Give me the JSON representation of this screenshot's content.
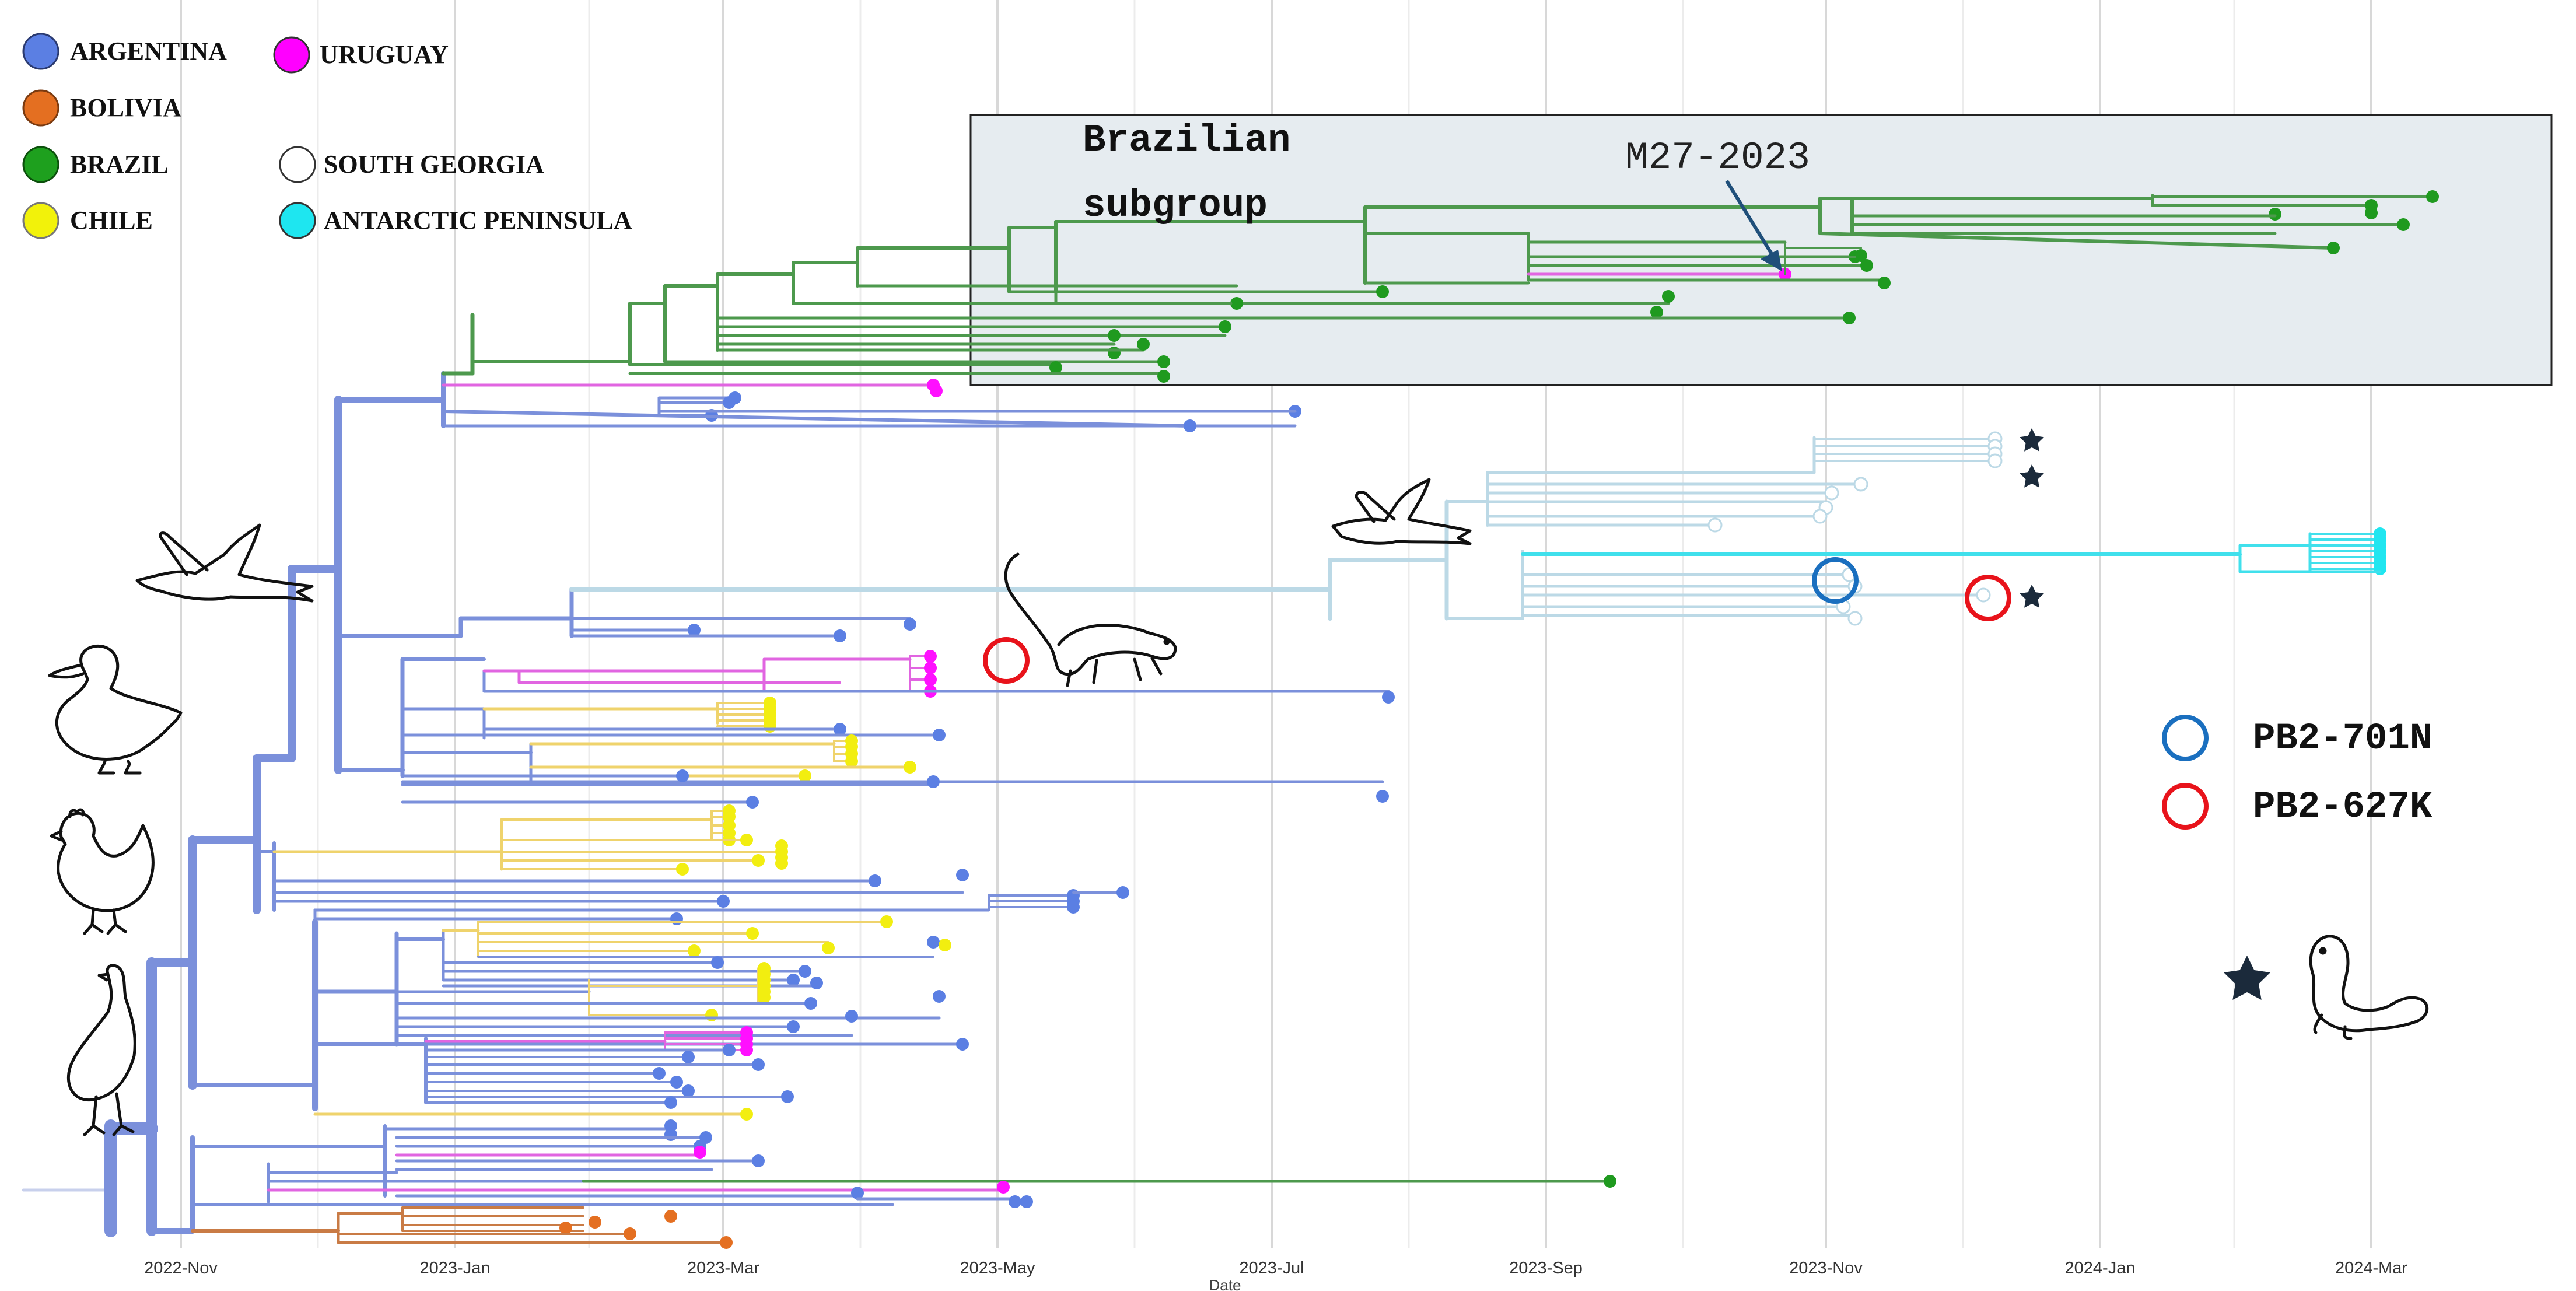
{
  "legend": {
    "items": [
      {
        "label": "ARGENTINA",
        "color": "#5b7fe3",
        "filled": true
      },
      {
        "label": "URUGUAY",
        "color": "#ff00ff",
        "filled": true
      },
      {
        "label": "BOLIVIA",
        "color": "#e46f21",
        "filled": true
      },
      {
        "label": "BRAZIL",
        "color": "#1ea01e",
        "filled": true
      },
      {
        "label": "SOUTH GEORGIA",
        "color": "#ffffff",
        "filled": false
      },
      {
        "label": "CHILE",
        "color": "#f2f20a",
        "filled": true
      },
      {
        "label": "ANTARCTIC PENINSULA",
        "color": "#1ee6f0",
        "filled": true
      }
    ]
  },
  "annotations": {
    "subgroup_title_line1": "Brazilian",
    "subgroup_title_line2": "subgroup",
    "strain_label": "M27-2023",
    "mutation_legend": [
      {
        "label": "PB2-701N",
        "color": "#1a6fbf"
      },
      {
        "label": "PB2-627K",
        "color": "#e8131b"
      }
    ]
  },
  "axis": {
    "title": "Date",
    "ticks": [
      "2022-Nov",
      "2023-Jan",
      "2023-Mar",
      "2023-May",
      "2023-Jul",
      "2023-Sep",
      "2023-Nov",
      "2024-Jan",
      "2024-Mar"
    ]
  },
  "colors": {
    "argentina": "#7b90db",
    "argentina_tip": "#5b7fe3",
    "uruguay": "#e165e1",
    "brazil": "#4d994d",
    "chile": "#efd36c",
    "bolivia": "#c97b45",
    "south_georgia": "#bcd9e6",
    "antarctic": "#40e0ec",
    "box_fill": "#e6ecf0",
    "star": "#1b2a3b"
  },
  "icons": [
    "gull-icon",
    "duck-icon",
    "chicken-icon",
    "rhea-icon",
    "otter-icon",
    "skua-icon",
    "seal-icon",
    "star-icon"
  ]
}
